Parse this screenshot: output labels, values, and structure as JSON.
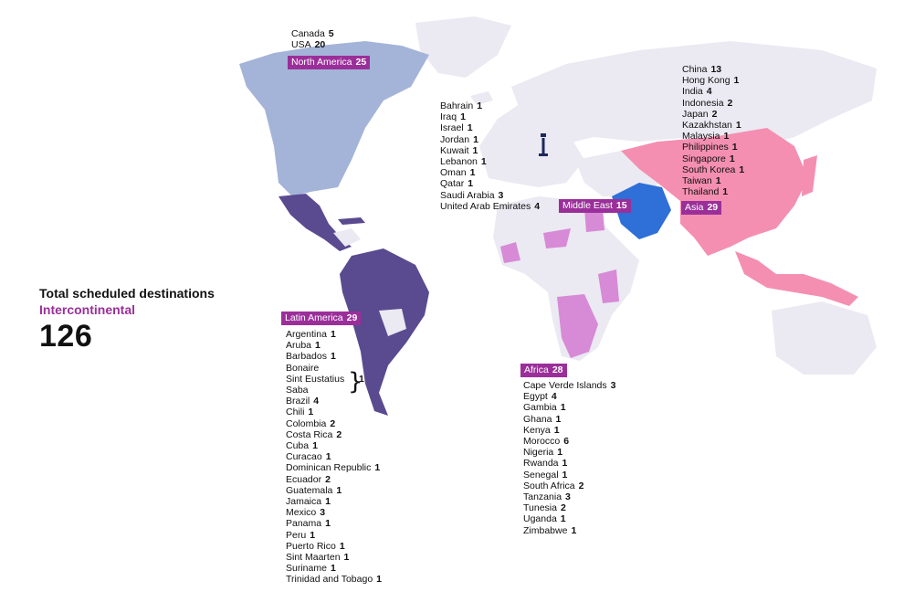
{
  "summary": {
    "title": "Total scheduled destinations",
    "subtitle": "Intercontinental",
    "total": "126"
  },
  "colors": {
    "north_america": "#a4b4d8",
    "latin_america": "#5a4a8f",
    "caribbean_mid": "#6d5da3",
    "africa_dest": "#d78ad6",
    "middle_east_dest": "#2e6fd8",
    "asia_dest": "#f48fb1",
    "other_land": "#ebe9f2",
    "label_bg": "#9b2f9a"
  },
  "regions": {
    "north_america": {
      "label": "North America",
      "count": "25",
      "items": [
        {
          "name": "Canada",
          "count": "5"
        },
        {
          "name": "USA",
          "count": "20"
        }
      ]
    },
    "middle_east": {
      "label": "Middle East",
      "count": "15",
      "items": [
        {
          "name": "Bahrain",
          "count": "1"
        },
        {
          "name": "Iraq",
          "count": "1"
        },
        {
          "name": "Israel",
          "count": "1"
        },
        {
          "name": "Jordan",
          "count": "1"
        },
        {
          "name": "Kuwait",
          "count": "1"
        },
        {
          "name": "Lebanon",
          "count": "1"
        },
        {
          "name": "Oman",
          "count": "1"
        },
        {
          "name": "Qatar",
          "count": "1"
        },
        {
          "name": "Saudi Arabia",
          "count": "3"
        },
        {
          "name": "United Arab Emirates",
          "count": "4"
        }
      ]
    },
    "asia": {
      "label": "Asia",
      "count": "29",
      "items": [
        {
          "name": "China",
          "count": "13"
        },
        {
          "name": "Hong Kong",
          "count": "1"
        },
        {
          "name": "India",
          "count": "4"
        },
        {
          "name": "Indonesia",
          "count": "2"
        },
        {
          "name": "Japan",
          "count": "2"
        },
        {
          "name": "Kazakhstan",
          "count": "1"
        },
        {
          "name": "Malaysia",
          "count": "1"
        },
        {
          "name": "Philippines",
          "count": "1"
        },
        {
          "name": "Singapore",
          "count": "1"
        },
        {
          "name": "South Korea",
          "count": "1"
        },
        {
          "name": "Taiwan",
          "count": "1"
        },
        {
          "name": "Thailand",
          "count": "1"
        }
      ]
    },
    "latin_america": {
      "label": "Latin America",
      "count": "29",
      "items_top": [
        {
          "name": "Argentina",
          "count": "1"
        },
        {
          "name": "Aruba",
          "count": "1"
        },
        {
          "name": "Barbados",
          "count": "1"
        }
      ],
      "bes_group": {
        "names": [
          "Bonaire",
          "Sint Eustatius",
          "Saba"
        ],
        "count": "1"
      },
      "items_bottom": [
        {
          "name": "Brazil",
          "count": "4"
        },
        {
          "name": "Chili",
          "count": "1"
        },
        {
          "name": "Colombia",
          "count": "2"
        },
        {
          "name": "Costa Rica",
          "count": "2"
        },
        {
          "name": "Cuba",
          "count": "1"
        },
        {
          "name": "Curacao",
          "count": "1"
        },
        {
          "name": "Dominican Republic",
          "count": "1"
        },
        {
          "name": "Ecuador",
          "count": "2"
        },
        {
          "name": "Guatemala",
          "count": "1"
        },
        {
          "name": "Jamaica",
          "count": "1"
        },
        {
          "name": "Mexico",
          "count": "3"
        },
        {
          "name": "Panama",
          "count": "1"
        },
        {
          "name": "Peru",
          "count": "1"
        },
        {
          "name": "Puerto Rico",
          "count": "1"
        },
        {
          "name": "Sint Maarten",
          "count": "1"
        },
        {
          "name": "Suriname",
          "count": "1"
        },
        {
          "name": "Trinidad and Tobago",
          "count": "1"
        }
      ]
    },
    "africa": {
      "label": "Africa",
      "count": "28",
      "items": [
        {
          "name": "Cape Verde Islands",
          "count": "3"
        },
        {
          "name": "Egypt",
          "count": "4"
        },
        {
          "name": "Gambia",
          "count": "1"
        },
        {
          "name": "Ghana",
          "count": "1"
        },
        {
          "name": "Kenya",
          "count": "1"
        },
        {
          "name": "Morocco",
          "count": "6"
        },
        {
          "name": "Nigeria",
          "count": "1"
        },
        {
          "name": "Rwanda",
          "count": "1"
        },
        {
          "name": "Senegal",
          "count": "1"
        },
        {
          "name": "South Africa",
          "count": "2"
        },
        {
          "name": "Tanzania",
          "count": "3"
        },
        {
          "name": "Tunesia",
          "count": "2"
        },
        {
          "name": "Uganda",
          "count": "1"
        },
        {
          "name": "Zimbabwe",
          "count": "1"
        }
      ]
    }
  },
  "hub_marker": "control-tower-icon"
}
